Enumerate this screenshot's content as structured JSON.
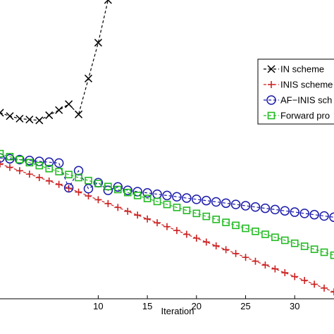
{
  "chart_data": {
    "type": "line",
    "xlabel": "Iteration",
    "ylabel": "",
    "xlim": [
      0,
      34
    ],
    "ylim": [
      -25,
      10
    ],
    "xticks": [
      10,
      15,
      20,
      25,
      30
    ],
    "grid": false,
    "legend_position": "top-right",
    "series": [
      {
        "name": "IN scheme",
        "color": "#000000",
        "marker": "x",
        "dash": true,
        "x": [
          0,
          1,
          2,
          3,
          4,
          5,
          6,
          7,
          8,
          9,
          10,
          11
        ],
        "y": [
          -3.2,
          -3.6,
          -3.9,
          -4.0,
          -4.1,
          -3.5,
          -2.9,
          -2.2,
          -3.4,
          0.8,
          5.0,
          10.0
        ]
      },
      {
        "name": "INIS scheme",
        "color": "#cc2222",
        "marker": "+",
        "dash": true,
        "x": [
          0,
          1,
          2,
          3,
          4,
          5,
          6,
          7,
          8,
          9,
          10,
          11,
          12,
          13,
          14,
          15,
          16,
          17,
          18,
          19,
          20,
          21,
          22,
          23,
          24,
          25,
          26,
          27,
          28,
          29,
          30,
          31,
          32,
          33,
          34
        ],
        "y": [
          -9.2,
          -9.6,
          -10.0,
          -10.4,
          -10.8,
          -11.2,
          -11.6,
          -12.05,
          -12.5,
          -12.95,
          -13.4,
          -13.85,
          -14.3,
          -14.75,
          -15.2,
          -15.65,
          -16.1,
          -16.55,
          -17.0,
          -17.45,
          -17.9,
          -18.35,
          -18.8,
          -19.25,
          -19.7,
          -20.15,
          -20.6,
          -21.05,
          -21.5,
          -21.95,
          -22.4,
          -22.85,
          -23.3,
          -23.75,
          -24.2
        ]
      },
      {
        "name": "AF-INIS scheme",
        "color": "#1a1aaa",
        "marker": "o",
        "dash": true,
        "x": [
          0,
          1,
          2,
          3,
          4,
          5,
          6,
          7,
          8,
          9,
          10,
          11,
          12,
          13,
          14,
          15,
          16,
          17,
          18,
          19,
          20,
          21,
          22,
          23,
          24,
          25,
          26,
          27,
          28,
          29,
          30,
          31,
          32,
          33,
          34
        ],
        "y": [
          -8.5,
          -8.6,
          -8.7,
          -8.8,
          -8.9,
          -9.0,
          -9.1,
          -12.0,
          -10.0,
          -12.1,
          -11.4,
          -12.3,
          -11.9,
          -12.3,
          -12.45,
          -12.6,
          -12.75,
          -12.9,
          -13.05,
          -13.2,
          -13.35,
          -13.5,
          -13.65,
          -13.8,
          -13.95,
          -14.1,
          -14.25,
          -14.4,
          -14.55,
          -14.7,
          -14.85,
          -15.0,
          -15.15,
          -15.3,
          -15.45
        ]
      },
      {
        "name": "Forward propagation",
        "color": "#22bb22",
        "marker": "s",
        "dash": true,
        "x": [
          0,
          1,
          2,
          3,
          4,
          5,
          6,
          7,
          8,
          9,
          10,
          11,
          12,
          13,
          14,
          15,
          16,
          17,
          18,
          19,
          20,
          21,
          22,
          23,
          24,
          25,
          26,
          27,
          28,
          29,
          30,
          31,
          32,
          33,
          34
        ],
        "y": [
          -8.0,
          -8.35,
          -8.7,
          -9.05,
          -9.4,
          -9.75,
          -10.1,
          -10.45,
          -10.8,
          -11.15,
          -11.5,
          -11.85,
          -12.2,
          -12.55,
          -12.9,
          -13.25,
          -13.6,
          -13.95,
          -14.3,
          -14.65,
          -15.0,
          -15.35,
          -15.7,
          -16.05,
          -16.4,
          -16.75,
          -17.1,
          -17.45,
          -17.8,
          -18.15,
          -18.5,
          -18.85,
          -19.2,
          -19.55,
          -19.9
        ]
      }
    ]
  },
  "legend": {
    "items": [
      {
        "label": "IN scheme"
      },
      {
        "label": "INIS scheme"
      },
      {
        "label": "AF−INIS sch"
      },
      {
        "label": "Forward pro"
      }
    ]
  }
}
